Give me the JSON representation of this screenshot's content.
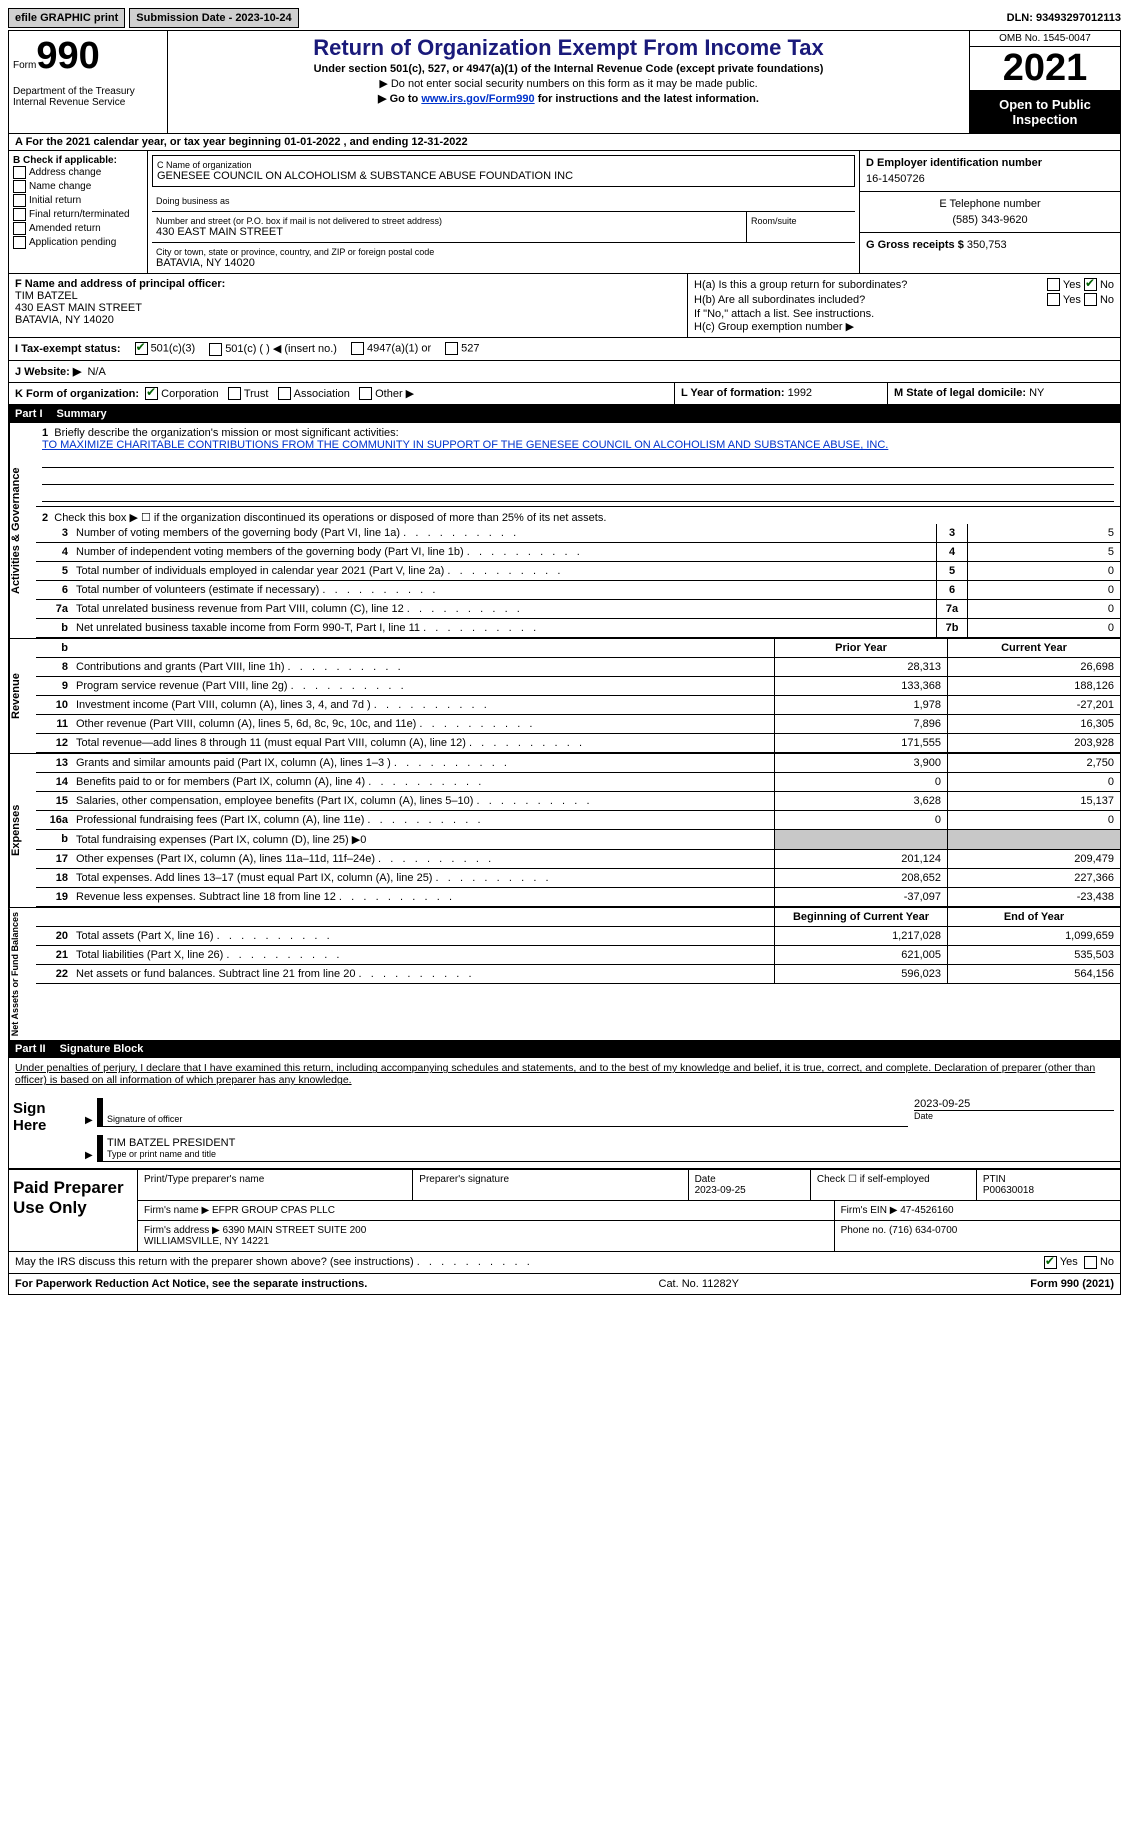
{
  "topbar": {
    "efile": "efile GRAPHIC print",
    "submission": "Submission Date - 2023-10-24",
    "dln": "DLN: 93493297012113"
  },
  "header": {
    "form_word": "Form",
    "form_num": "990",
    "dept": "Department of the Treasury\nInternal Revenue Service",
    "title": "Return of Organization Exempt From Income Tax",
    "sub1": "Under section 501(c), 527, or 4947(a)(1) of the Internal Revenue Code (except private foundations)",
    "sub2": "▶ Do not enter social security numbers on this form as it may be made public.",
    "sub3_pre": "▶ Go to ",
    "sub3_link": "www.irs.gov/Form990",
    "sub3_post": " for instructions and the latest information.",
    "omb": "OMB No. 1545-0047",
    "year": "2021",
    "inspect": "Open to Public Inspection"
  },
  "row_a": "A For the 2021 calendar year, or tax year beginning 01-01-2022   , and ending 12-31-2022",
  "section_b": {
    "label": "B Check if applicable:",
    "items": [
      "Address change",
      "Name change",
      "Initial return",
      "Final return/terminated",
      "Amended return",
      "Application pending"
    ]
  },
  "section_c": {
    "name_label": "C Name of organization",
    "name": "GENESEE COUNCIL ON ALCOHOLISM & SUBSTANCE ABUSE FOUNDATION INC",
    "dba_label": "Doing business as",
    "dba": "",
    "street_label": "Number and street (or P.O. box if mail is not delivered to street address)",
    "street": "430 EAST MAIN STREET",
    "room_label": "Room/suite",
    "city_label": "City or town, state or province, country, and ZIP or foreign postal code",
    "city": "BATAVIA, NY  14020"
  },
  "section_d": {
    "label": "D Employer identification number",
    "value": "16-1450726"
  },
  "section_e": {
    "label": "E Telephone number",
    "value": "(585) 343-9620"
  },
  "section_g": {
    "label": "G Gross receipts $",
    "value": "350,753"
  },
  "section_f": {
    "label": "F  Name and address of principal officer:",
    "name": "TIM BATZEL",
    "street": "430 EAST MAIN STREET",
    "city": "BATAVIA, NY  14020"
  },
  "section_h": {
    "ha": "H(a)  Is this a group return for subordinates?",
    "ha_yes": "Yes",
    "ha_no": "No",
    "hb": "H(b)  Are all subordinates included?",
    "hb_note": "If \"No,\" attach a list. See instructions.",
    "hc": "H(c)  Group exemption number ▶"
  },
  "section_i": {
    "label": "I   Tax-exempt status:",
    "opts": [
      "501(c)(3)",
      "501(c) (  ) ◀ (insert no.)",
      "4947(a)(1) or",
      "527"
    ]
  },
  "section_j": {
    "label": "J   Website: ▶",
    "value": "N/A"
  },
  "section_k": {
    "label": "K Form of organization:",
    "opts": [
      "Corporation",
      "Trust",
      "Association",
      "Other ▶"
    ],
    "l_label": "L Year of formation:",
    "l_val": "1992",
    "m_label": "M State of legal domicile:",
    "m_val": "NY"
  },
  "part1": {
    "header_part": "Part I",
    "header_title": "Summary",
    "line1_label": "Briefly describe the organization's mission or most significant activities:",
    "line1_text": "TO MAXIMIZE CHARITABLE CONTRIBUTIONS FROM THE COMMUNITY IN SUPPORT OF THE GENESEE COUNCIL ON ALCOHOLISM AND SUBSTANCE ABUSE, INC.",
    "line2": "Check this box ▶ ☐  if the organization discontinued its operations or disposed of more than 25% of its net assets.",
    "lines_gov": [
      {
        "n": "3",
        "t": "Number of voting members of the governing body (Part VI, line 1a)",
        "box": "3",
        "v": "5"
      },
      {
        "n": "4",
        "t": "Number of independent voting members of the governing body (Part VI, line 1b)",
        "box": "4",
        "v": "5"
      },
      {
        "n": "5",
        "t": "Total number of individuals employed in calendar year 2021 (Part V, line 2a)",
        "box": "5",
        "v": "0"
      },
      {
        "n": "6",
        "t": "Total number of volunteers (estimate if necessary)",
        "box": "6",
        "v": "0"
      },
      {
        "n": "7a",
        "t": "Total unrelated business revenue from Part VIII, column (C), line 12",
        "box": "7a",
        "v": "0"
      },
      {
        "n": "b",
        "t": "Net unrelated business taxable income from Form 990-T, Part I, line 11",
        "box": "7b",
        "v": "0"
      }
    ],
    "col_prior": "Prior Year",
    "col_curr": "Current Year",
    "lines_rev": [
      {
        "n": "8",
        "t": "Contributions and grants (Part VIII, line 1h)",
        "p": "28,313",
        "c": "26,698"
      },
      {
        "n": "9",
        "t": "Program service revenue (Part VIII, line 2g)",
        "p": "133,368",
        "c": "188,126"
      },
      {
        "n": "10",
        "t": "Investment income (Part VIII, column (A), lines 3, 4, and 7d )",
        "p": "1,978",
        "c": "-27,201"
      },
      {
        "n": "11",
        "t": "Other revenue (Part VIII, column (A), lines 5, 6d, 8c, 9c, 10c, and 11e)",
        "p": "7,896",
        "c": "16,305"
      },
      {
        "n": "12",
        "t": "Total revenue—add lines 8 through 11 (must equal Part VIII, column (A), line 12)",
        "p": "171,555",
        "c": "203,928"
      }
    ],
    "lines_exp": [
      {
        "n": "13",
        "t": "Grants and similar amounts paid (Part IX, column (A), lines 1–3 )",
        "p": "3,900",
        "c": "2,750"
      },
      {
        "n": "14",
        "t": "Benefits paid to or for members (Part IX, column (A), line 4)",
        "p": "0",
        "c": "0"
      },
      {
        "n": "15",
        "t": "Salaries, other compensation, employee benefits (Part IX, column (A), lines 5–10)",
        "p": "3,628",
        "c": "15,137"
      },
      {
        "n": "16a",
        "t": "Professional fundraising fees (Part IX, column (A), line 11e)",
        "p": "0",
        "c": "0"
      },
      {
        "n": "b",
        "t": "Total fundraising expenses (Part IX, column (D), line 25) ▶0",
        "p": "",
        "c": "",
        "shade": true
      },
      {
        "n": "17",
        "t": "Other expenses (Part IX, column (A), lines 11a–11d, 11f–24e)",
        "p": "201,124",
        "c": "209,479"
      },
      {
        "n": "18",
        "t": "Total expenses. Add lines 13–17 (must equal Part IX, column (A), line 25)",
        "p": "208,652",
        "c": "227,366"
      },
      {
        "n": "19",
        "t": "Revenue less expenses. Subtract line 18 from line 12",
        "p": "-37,097",
        "c": "-23,438"
      }
    ],
    "col_boy": "Beginning of Current Year",
    "col_eoy": "End of Year",
    "lines_na": [
      {
        "n": "20",
        "t": "Total assets (Part X, line 16)",
        "p": "1,217,028",
        "c": "1,099,659"
      },
      {
        "n": "21",
        "t": "Total liabilities (Part X, line 26)",
        "p": "621,005",
        "c": "535,503"
      },
      {
        "n": "22",
        "t": "Net assets or fund balances. Subtract line 21 from line 20",
        "p": "596,023",
        "c": "564,156"
      }
    ],
    "vtab_gov": "Activities & Governance",
    "vtab_rev": "Revenue",
    "vtab_exp": "Expenses",
    "vtab_na": "Net Assets or Fund Balances"
  },
  "part2": {
    "header_part": "Part II",
    "header_title": "Signature Block",
    "penalty": "Under penalties of perjury, I declare that I have examined this return, including accompanying schedules and statements, and to the best of my knowledge and belief, it is true, correct, and complete. Declaration of preparer (other than officer) is based on all information of which preparer has any knowledge.",
    "sign_here": "Sign Here",
    "sig_officer_label": "Signature of officer",
    "sig_date": "2023-09-25",
    "sig_date_label": "Date",
    "sig_name": "TIM BATZEL PRESIDENT",
    "sig_name_label": "Type or print name and title",
    "paid_label": "Paid Preparer Use Only",
    "prep": {
      "name_label": "Print/Type preparer's name",
      "name": "",
      "sig_label": "Preparer's signature",
      "date_label": "Date",
      "date": "2023-09-25",
      "check_label": "Check ☐ if self-employed",
      "ptin_label": "PTIN",
      "ptin": "P00630018",
      "firm_name_label": "Firm's name     ▶",
      "firm_name": "EFPR GROUP CPAS PLLC",
      "firm_ein_label": "Firm's EIN ▶",
      "firm_ein": "47-4526160",
      "firm_addr_label": "Firm's address ▶",
      "firm_addr": "6390 MAIN STREET SUITE 200\nWILLIAMSVILLE, NY  14221",
      "phone_label": "Phone no.",
      "phone": "(716) 634-0700"
    },
    "irs_discuss": "May the IRS discuss this return with the preparer shown above? (see instructions)",
    "yes": "Yes",
    "no": "No"
  },
  "footer": {
    "left": "For Paperwork Reduction Act Notice, see the separate instructions.",
    "mid": "Cat. No. 11282Y",
    "right": "Form 990 (2021)"
  }
}
